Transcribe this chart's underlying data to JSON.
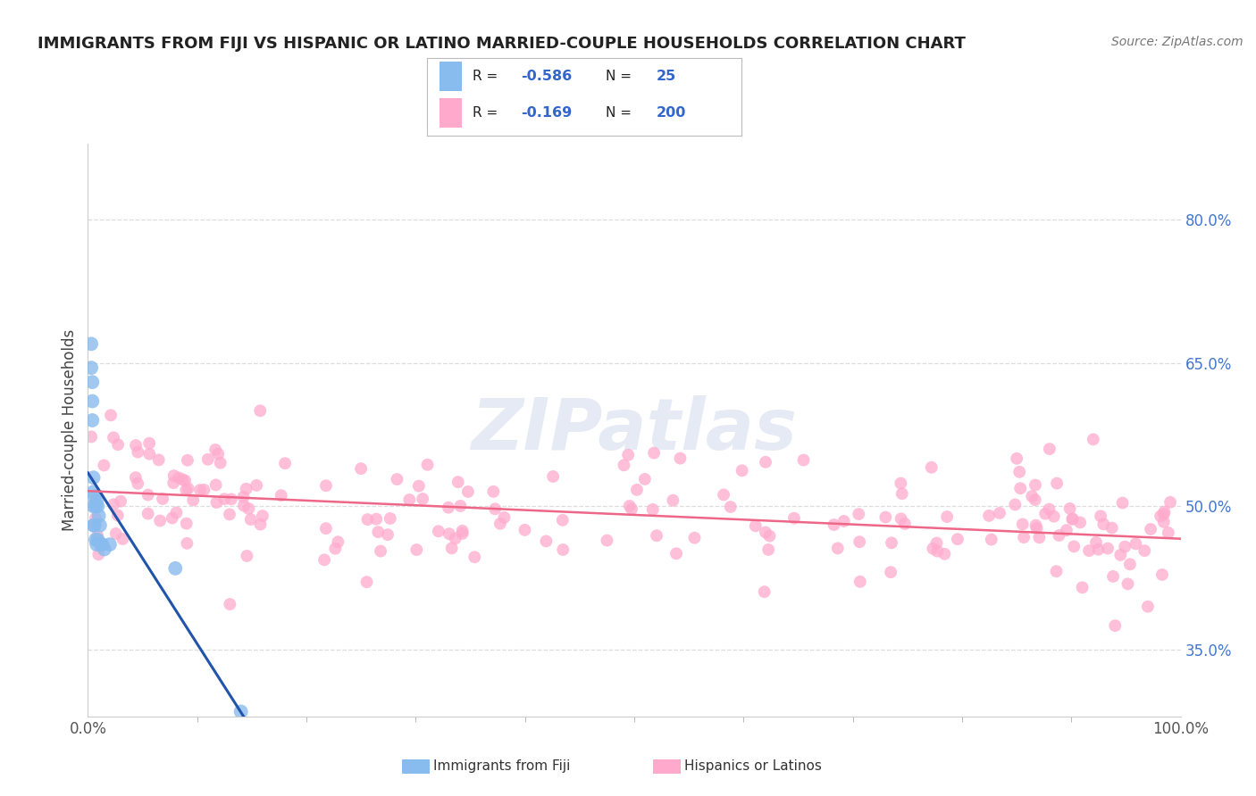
{
  "title": "IMMIGRANTS FROM FIJI VS HISPANIC OR LATINO MARRIED-COUPLE HOUSEHOLDS CORRELATION CHART",
  "source": "Source: ZipAtlas.com",
  "ylabel": "Married-couple Households",
  "legend_label_1": "Immigrants from Fiji",
  "legend_label_2": "Hispanics or Latinos",
  "R1": -0.586,
  "N1": 25,
  "R2": -0.169,
  "N2": 200,
  "color_blue": "#88BBEE",
  "color_pink": "#FFAACC",
  "color_blue_line": "#2255AA",
  "color_pink_line": "#EE6688",
  "watermark": "ZIPatlas",
  "watermark_color": "#AABBDD",
  "xlim": [
    0,
    1.0
  ],
  "ylim": [
    0.28,
    0.88
  ],
  "right_yticks": [
    0.35,
    0.5,
    0.65,
    0.8
  ],
  "right_yticklabels": [
    "35.0%",
    "50.0%",
    "65.0%",
    "80.0%"
  ],
  "blue_line_x": [
    0.0,
    0.148
  ],
  "blue_line_y": [
    0.535,
    0.27
  ],
  "pink_line_x": [
    0.0,
    1.0
  ],
  "pink_line_y": [
    0.516,
    0.466
  ],
  "grid_color": "#DDDDDD",
  "background_color": "#FFFFFF",
  "title_fontsize": 13,
  "source_fontsize": 10,
  "tick_fontsize": 12,
  "ylabel_fontsize": 12
}
